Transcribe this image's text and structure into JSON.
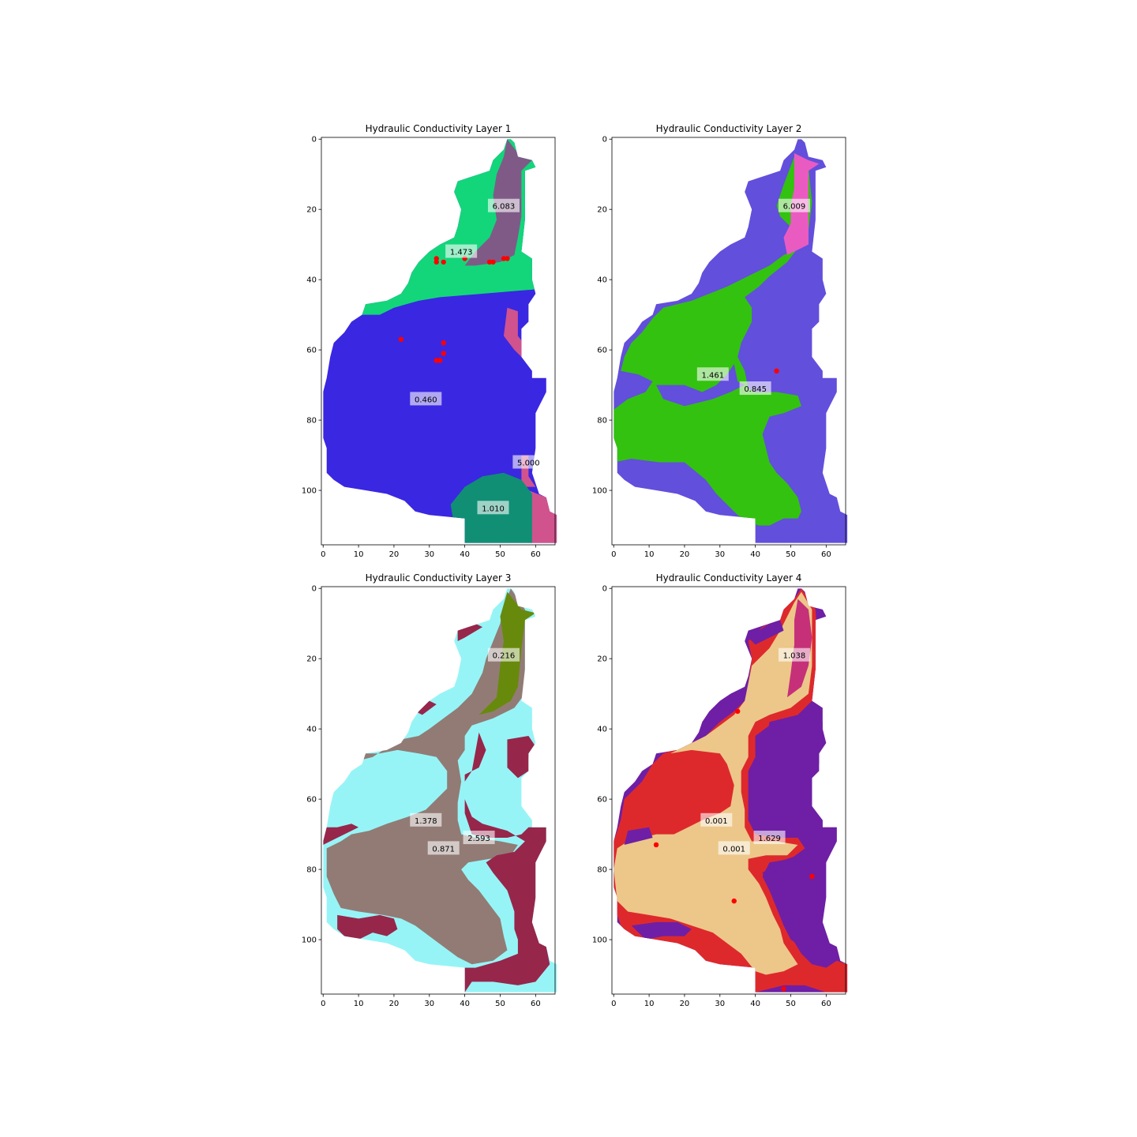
{
  "figure": {
    "background": "#ffffff",
    "xticks": [
      "0",
      "10",
      "20",
      "30",
      "40",
      "50",
      "60"
    ],
    "yticks": [
      "0",
      "20",
      "40",
      "60",
      "80",
      "100"
    ]
  },
  "chart_data": [
    {
      "type": "heatmap",
      "title": "Hydraulic Conductivity Layer 1",
      "xlim": [
        -0.5,
        65.5
      ],
      "ylim": [
        115.5,
        -0.5
      ],
      "xticks": [
        0,
        10,
        20,
        30,
        40,
        50,
        60
      ],
      "yticks": [
        0,
        20,
        40,
        60,
        80,
        100
      ],
      "zones": [
        {
          "value": "6.083",
          "color": "#7f5a87",
          "label_at": [
            51,
            19
          ]
        },
        {
          "value": "1.473",
          "color": "#13d67a",
          "label_at": [
            39,
            32
          ]
        },
        {
          "value": "0.460",
          "color": "#3a27e1",
          "label_at": [
            29,
            74
          ]
        },
        {
          "value": "5.000",
          "color": "#d0538d",
          "label_at": [
            58,
            92
          ]
        },
        {
          "value": "1.010",
          "color": "#108f74",
          "label_at": [
            48,
            105
          ]
        }
      ],
      "wells": [
        [
          32,
          34
        ],
        [
          32,
          35
        ],
        [
          34,
          35
        ],
        [
          40,
          34
        ],
        [
          47,
          35
        ],
        [
          48,
          35
        ],
        [
          51,
          34
        ],
        [
          52,
          34
        ],
        [
          22,
          57
        ],
        [
          34,
          58
        ],
        [
          34,
          61
        ],
        [
          32,
          63
        ],
        [
          33,
          63
        ]
      ]
    },
    {
      "type": "heatmap",
      "title": "Hydraulic Conductivity Layer 2",
      "xlim": [
        -0.5,
        65.5
      ],
      "ylim": [
        115.5,
        -0.5
      ],
      "xticks": [
        0,
        10,
        20,
        30,
        40,
        50,
        60
      ],
      "yticks": [
        0,
        20,
        40,
        60,
        80,
        100
      ],
      "zones": [
        {
          "value": "6.009",
          "color": "#ea5bc1",
          "label_at": [
            51,
            19
          ]
        },
        {
          "value": "1.461",
          "color": "#624fdc",
          "label_at": [
            28,
            67
          ]
        },
        {
          "value": "0.845",
          "color": "#33c20f",
          "label_at": [
            40,
            71
          ]
        }
      ],
      "wells": [
        [
          46,
          66
        ]
      ]
    },
    {
      "type": "heatmap",
      "title": "Hydraulic Conductivity Layer 3",
      "xlim": [
        -0.5,
        65.5
      ],
      "ylim": [
        115.5,
        -0.5
      ],
      "xticks": [
        0,
        10,
        20,
        30,
        40,
        50,
        60
      ],
      "yticks": [
        0,
        20,
        40,
        60,
        80,
        100
      ],
      "zones": [
        {
          "value": "0.216",
          "color": "#678a0c",
          "label_at": [
            51,
            19
          ]
        },
        {
          "value": "1.378",
          "color": "#927b75",
          "label_at": [
            29,
            66
          ]
        },
        {
          "value": "2.593",
          "color": "#97264b",
          "label_at": [
            44,
            71
          ]
        },
        {
          "value": "0.871",
          "color": "#97f4f6",
          "label_at": [
            34,
            74
          ]
        }
      ],
      "wells": []
    },
    {
      "type": "heatmap",
      "title": "Hydraulic Conductivity Layer 4",
      "xlim": [
        -0.5,
        65.5
      ],
      "ylim": [
        115.5,
        -0.5
      ],
      "xticks": [
        0,
        10,
        20,
        30,
        40,
        50,
        60
      ],
      "yticks": [
        0,
        20,
        40,
        60,
        80,
        100
      ],
      "zones": [
        {
          "value": "1.038",
          "color": "#c63079",
          "label_at": [
            51,
            19
          ]
        },
        {
          "value": "0.001",
          "color": "#ecc789",
          "label_at": [
            29,
            66
          ]
        },
        {
          "value": "1.629",
          "color": "#6e1fa5",
          "label_at": [
            44,
            71
          ]
        },
        {
          "value": "0.001",
          "color": "#de292c",
          "label_at": [
            34,
            74
          ]
        }
      ],
      "wells": [
        [
          35,
          35
        ],
        [
          12,
          73
        ],
        [
          56,
          82
        ],
        [
          34,
          89
        ],
        [
          48,
          114
        ]
      ]
    }
  ]
}
